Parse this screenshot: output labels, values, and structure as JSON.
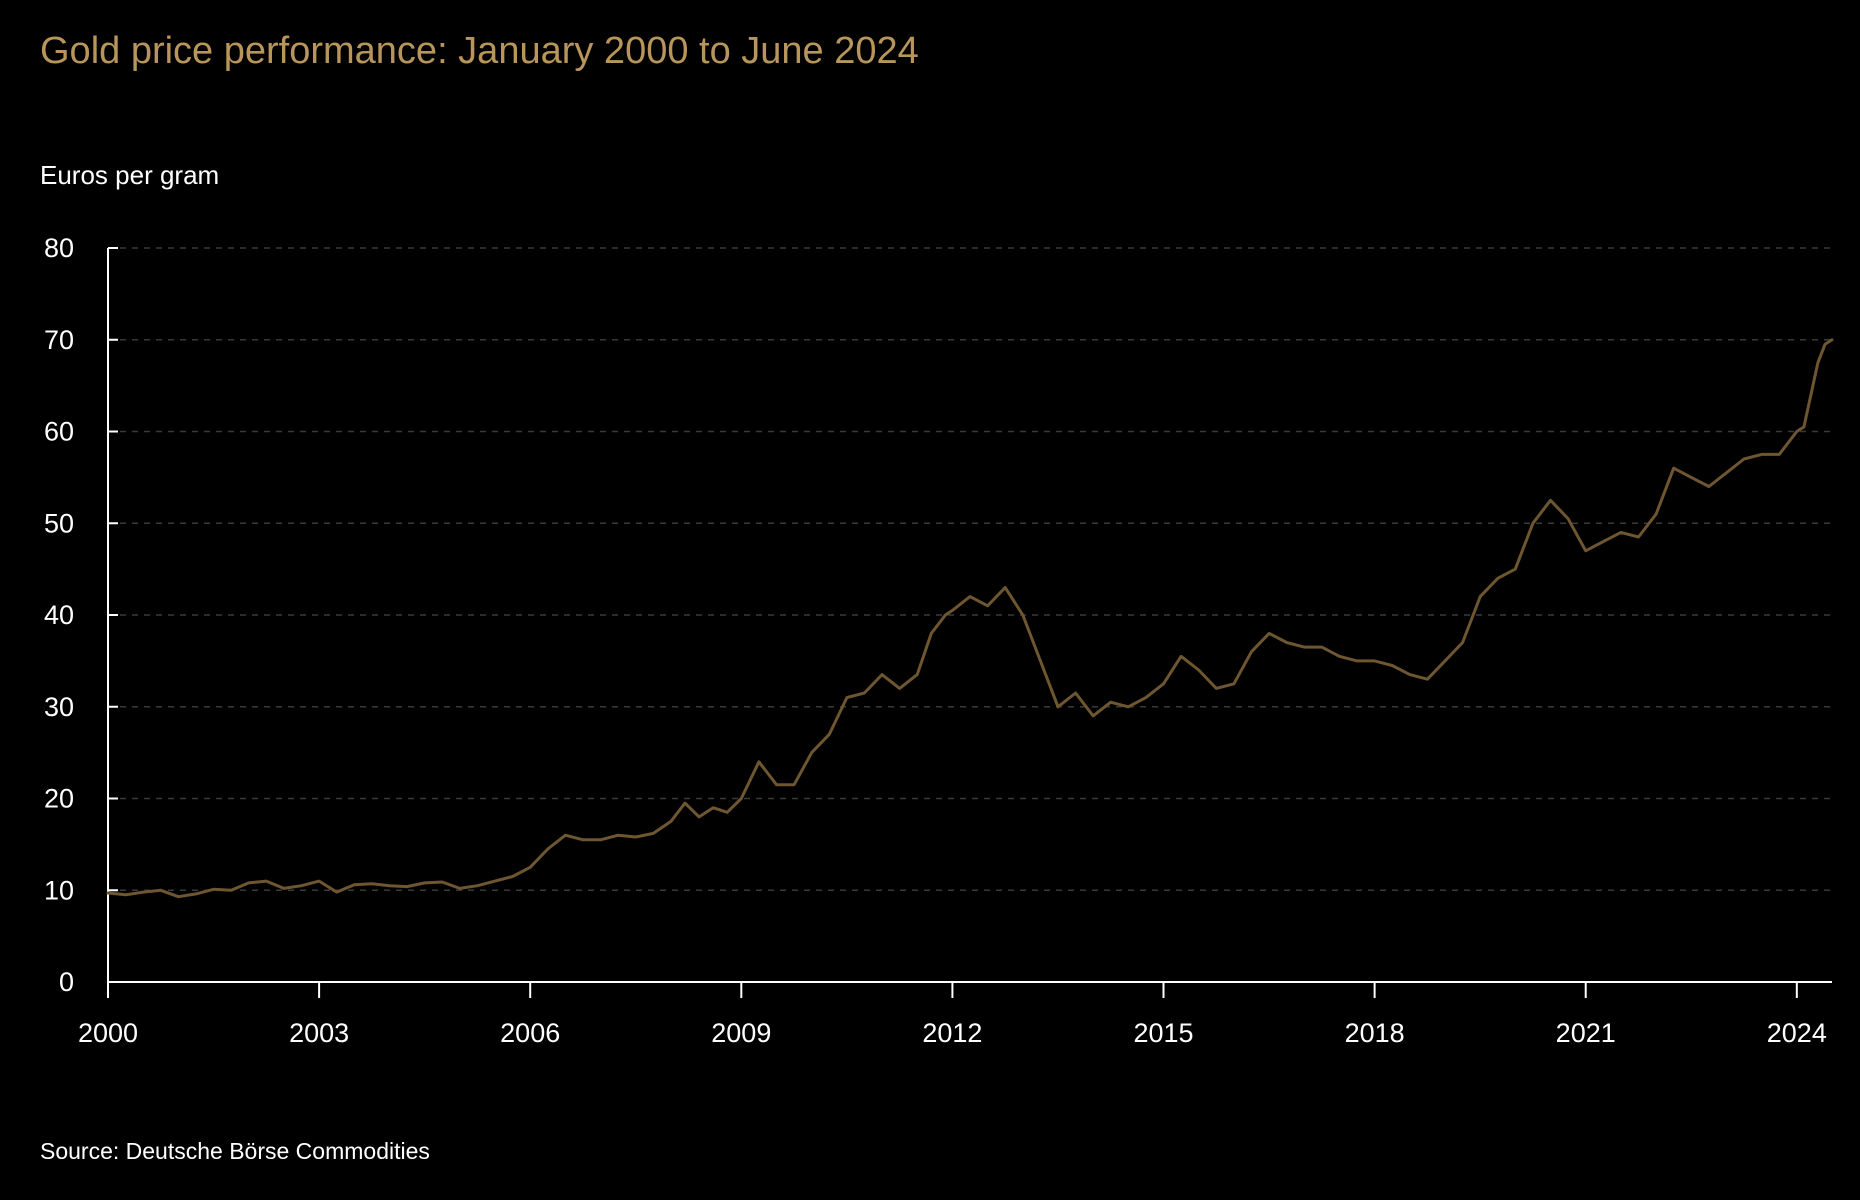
{
  "colors": {
    "background": "#000000",
    "title": "#b8955a",
    "line": "#6e5630",
    "axis": "#ffffff",
    "grid": "#3a3a3a",
    "text": "#ffffff"
  },
  "chart_data": {
    "type": "line",
    "title": "Gold price performance: January 2000 to June 2024",
    "ylabel": "Euros per gram",
    "xlabel": "",
    "source": "Source: Deutsche Börse Commodities",
    "xlim": [
      2000,
      2024.5
    ],
    "ylim": [
      0,
      80
    ],
    "y_ticks": [
      0,
      10,
      20,
      30,
      40,
      50,
      60,
      70,
      80
    ],
    "x_ticks": [
      2000,
      2003,
      2006,
      2009,
      2012,
      2015,
      2018,
      2021,
      2024
    ],
    "grid": "horizontal dashed",
    "series": [
      {
        "x": [
          2000.0,
          2000.25,
          2000.5,
          2000.75,
          2001.0,
          2001.25,
          2001.5,
          2001.75,
          2002.0,
          2002.25,
          2002.5,
          2002.75,
          2003.0,
          2003.25,
          2003.5,
          2003.75,
          2004.0,
          2004.25,
          2004.5,
          2004.75,
          2005.0,
          2005.25,
          2005.5,
          2005.75,
          2006.0,
          2006.25,
          2006.5,
          2006.75,
          2007.0,
          2007.25,
          2007.5,
          2007.75,
          2008.0,
          2008.2,
          2008.4,
          2008.6,
          2008.8,
          2009.0,
          2009.25,
          2009.5,
          2009.75,
          2010.0,
          2010.25,
          2010.5,
          2010.75,
          2011.0,
          2011.25,
          2011.5,
          2011.7,
          2011.9,
          2012.0,
          2012.25,
          2012.5,
          2012.75,
          2013.0,
          2013.25,
          2013.5,
          2013.75,
          2014.0,
          2014.25,
          2014.5,
          2014.75,
          2015.0,
          2015.25,
          2015.5,
          2015.75,
          2016.0,
          2016.25,
          2016.5,
          2016.75,
          2017.0,
          2017.25,
          2017.5,
          2017.75,
          2018.0,
          2018.25,
          2018.5,
          2018.75,
          2019.0,
          2019.25,
          2019.5,
          2019.75,
          2020.0,
          2020.25,
          2020.5,
          2020.75,
          2021.0,
          2021.25,
          2021.5,
          2021.75,
          2022.0,
          2022.25,
          2022.5,
          2022.75,
          2023.0,
          2023.25,
          2023.5,
          2023.75,
          2024.0,
          2024.1,
          2024.2,
          2024.3,
          2024.4,
          2024.5
        ],
        "y": [
          9.7,
          9.5,
          9.8,
          10.0,
          9.3,
          9.6,
          10.1,
          10.0,
          10.8,
          11.0,
          10.2,
          10.5,
          11.0,
          9.8,
          10.6,
          10.7,
          10.5,
          10.4,
          10.8,
          10.9,
          10.2,
          10.5,
          11.0,
          11.5,
          12.5,
          14.5,
          16.0,
          15.5,
          15.5,
          16.0,
          15.8,
          16.2,
          17.5,
          19.5,
          18.0,
          19.0,
          18.5,
          20.0,
          24.0,
          21.5,
          21.5,
          25.0,
          27.0,
          31.0,
          31.5,
          33.5,
          32.0,
          33.5,
          38.0,
          40.0,
          40.5,
          42.0,
          41.0,
          43.0,
          40.0,
          35.0,
          30.0,
          31.5,
          29.0,
          30.5,
          30.0,
          31.0,
          32.5,
          35.5,
          34.0,
          32.0,
          32.5,
          36.0,
          38.0,
          37.0,
          36.5,
          36.5,
          35.5,
          35.0,
          35.0,
          34.5,
          33.5,
          33.0,
          35.0,
          37.0,
          42.0,
          44.0,
          45.0,
          50.0,
          52.5,
          50.5,
          47.0,
          48.0,
          49.0,
          48.5,
          51.0,
          56.0,
          55.0,
          54.0,
          55.5,
          57.0,
          57.5,
          57.5,
          60.0,
          60.5,
          64.0,
          67.5,
          69.5,
          70.0
        ]
      }
    ]
  }
}
